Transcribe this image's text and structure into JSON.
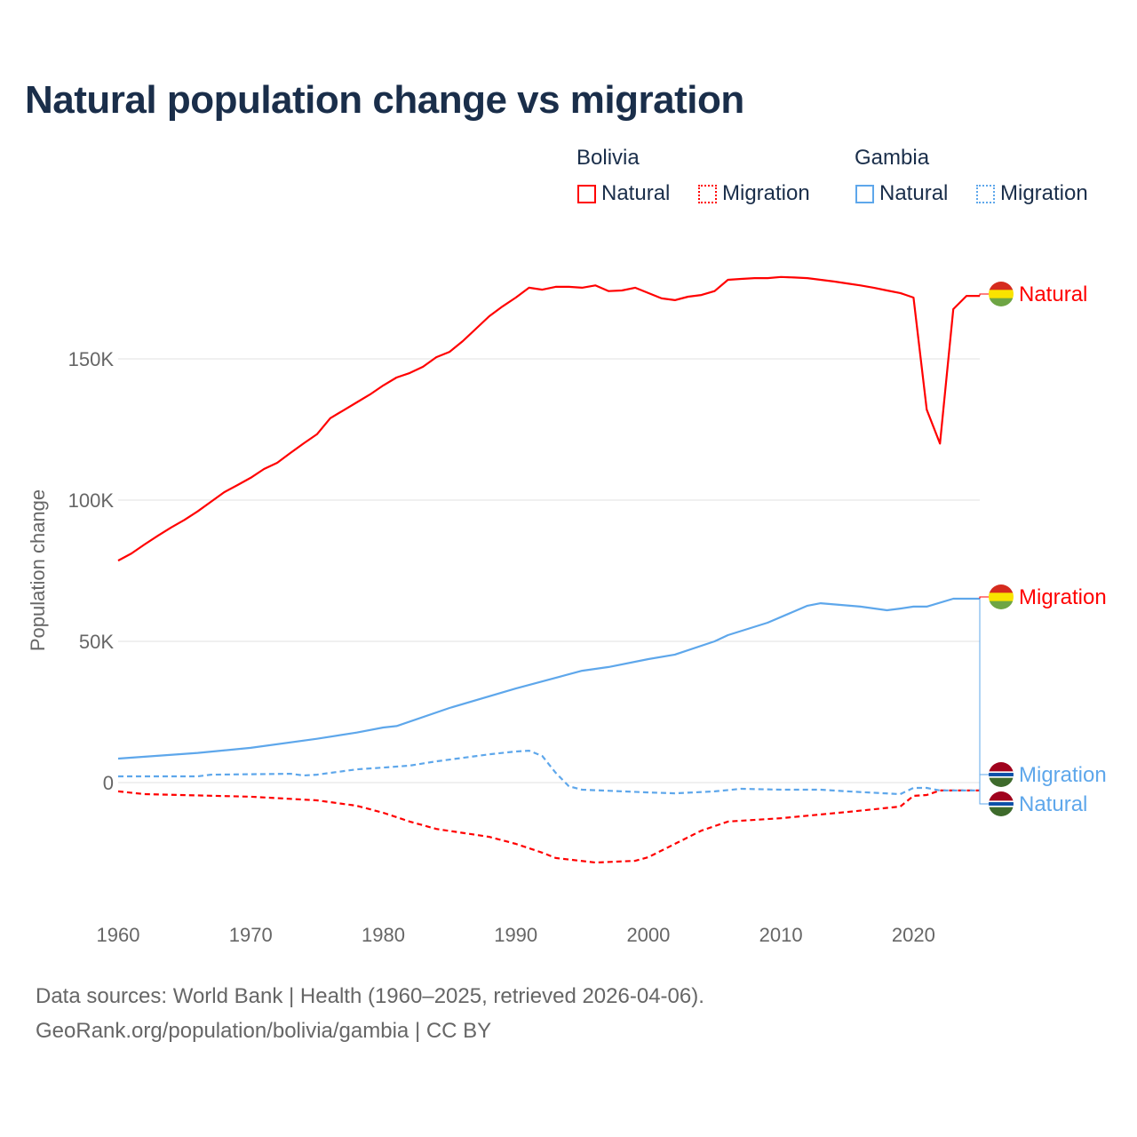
{
  "chart_data": {
    "type": "line",
    "title": "Natural population change vs migration",
    "xlabel": "",
    "ylabel": "Population change",
    "xlim": [
      1960,
      2025
    ],
    "ylim": [
      -40000,
      190000
    ],
    "xticks": [
      1960,
      1970,
      1980,
      1990,
      2000,
      2010,
      2020
    ],
    "xtick_labels": [
      "1960",
      "1970",
      "1980",
      "1990",
      "2000",
      "2010",
      "2020"
    ],
    "yticks": [
      0,
      50000,
      100000,
      150000
    ],
    "ytick_labels": [
      "0",
      "50K",
      "100K",
      "150K"
    ],
    "grid": true,
    "legend_groups": [
      {
        "name": "Bolivia",
        "items": [
          "Natural",
          "Migration"
        ]
      },
      {
        "name": "Gambia",
        "items": [
          "Natural",
          "Migration"
        ]
      }
    ],
    "legend_placement": "top-right",
    "series": [
      {
        "name": "Bolivia Natural",
        "country": "Bolivia",
        "label": "Natural",
        "color": "#ff0000",
        "dash": false,
        "x": [
          1960,
          1961,
          1962,
          1963,
          1964,
          1965,
          1966,
          1967,
          1968,
          1969,
          1970,
          1971,
          1972,
          1973,
          1974,
          1975,
          1976,
          1977,
          1978,
          1979,
          1980,
          1981,
          1982,
          1983,
          1984,
          1985,
          1986,
          1987,
          1988,
          1989,
          1990,
          1991,
          1992,
          1993,
          1994,
          1995,
          1996,
          1997,
          1998,
          1999,
          2000,
          2001,
          2002,
          2003,
          2004,
          2005,
          2006,
          2007,
          2008,
          2009,
          2010,
          2011,
          2012,
          2013,
          2014,
          2015,
          2016,
          2017,
          2018,
          2019,
          2020,
          2021,
          2022,
          2023,
          2024,
          2025
        ],
        "y": [
          78600,
          81100,
          84300,
          87400,
          90300,
          93000,
          96000,
          99400,
          102800,
          105300,
          107900,
          111000,
          113200,
          116700,
          120100,
          123300,
          129000,
          131800,
          134600,
          137400,
          140600,
          143400,
          145000,
          147200,
          150600,
          152500,
          156300,
          160700,
          165100,
          168600,
          171700,
          175200,
          174500,
          175500,
          175500,
          175200,
          176000,
          174000,
          174200,
          175200,
          173300,
          171400,
          170800,
          172000,
          172600,
          174000,
          178000,
          178300,
          178600,
          178600,
          179000,
          178800,
          178600,
          178000,
          177400,
          176700,
          176000,
          175200,
          174200,
          173300,
          171700,
          132000,
          120000,
          167600,
          172300,
          172300
        ]
      },
      {
        "name": "Bolivia Migration",
        "country": "Bolivia",
        "label": "Migration",
        "color": "#ff0000",
        "dash": true,
        "x": [
          1960,
          1962,
          1970,
          1975,
          1978,
          1980,
          1982,
          1984,
          1988,
          1990,
          1992,
          1993,
          1996,
          1999,
          2000,
          2002,
          2004,
          2006,
          2010,
          2015,
          2019,
          2020,
          2021,
          2022,
          2025
        ],
        "y": [
          -3100,
          -4100,
          -5000,
          -6300,
          -8200,
          -10700,
          -13800,
          -16400,
          -19200,
          -21700,
          -24800,
          -26700,
          -28300,
          -27700,
          -26400,
          -21700,
          -17000,
          -13800,
          -12600,
          -10400,
          -8500,
          -4700,
          -4400,
          -2800,
          -2800
        ]
      },
      {
        "name": "Gambia Natural",
        "country": "Gambia",
        "label": "Natural",
        "color": "#5ea7eb",
        "dash": false,
        "x": [
          1960,
          1966,
          1970,
          1975,
          1978,
          1980,
          1981,
          1985,
          1990,
          1995,
          1997,
          2000,
          2002,
          2005,
          2006,
          2009,
          2012,
          2013,
          2016,
          2018,
          2019,
          2020,
          2021,
          2023,
          2025
        ],
        "y": [
          8500,
          10500,
          12300,
          15500,
          17700,
          19500,
          20000,
          26400,
          33300,
          39600,
          40900,
          43700,
          45300,
          50000,
          52200,
          56600,
          62600,
          63500,
          62300,
          61000,
          61600,
          62300,
          62300,
          65100,
          65100
        ]
      },
      {
        "name": "Gambia Migration",
        "country": "Gambia",
        "label": "Migration",
        "color": "#5ea7eb",
        "dash": true,
        "x": [
          1960,
          1966,
          1967,
          1973,
          1974,
          1975,
          1978,
          1980,
          1982,
          1984,
          1988,
          1990,
          1991,
          1992,
          1993,
          1994,
          1995,
          2000,
          2002,
          2005,
          2007,
          2010,
          2013,
          2015,
          2019,
          2020,
          2021,
          2022,
          2025
        ],
        "y": [
          2200,
          2200,
          2800,
          3100,
          2500,
          2800,
          4700,
          5300,
          6000,
          7500,
          10000,
          11000,
          11300,
          9400,
          3500,
          -1300,
          -2500,
          -3500,
          -3800,
          -3100,
          -2200,
          -2500,
          -2500,
          -3100,
          -4100,
          -1900,
          -1900,
          -2800,
          -2800
        ]
      }
    ]
  },
  "footer": {
    "line1": "Data sources: World Bank | Health (1960–2025, retrieved 2026-04-06).",
    "line2": "GeoRank.org/population/bolivia/gambia | CC BY"
  },
  "colors": {
    "bolivia": "#ff0000",
    "gambia": "#5ea7eb",
    "title": "#1a2e4a"
  }
}
